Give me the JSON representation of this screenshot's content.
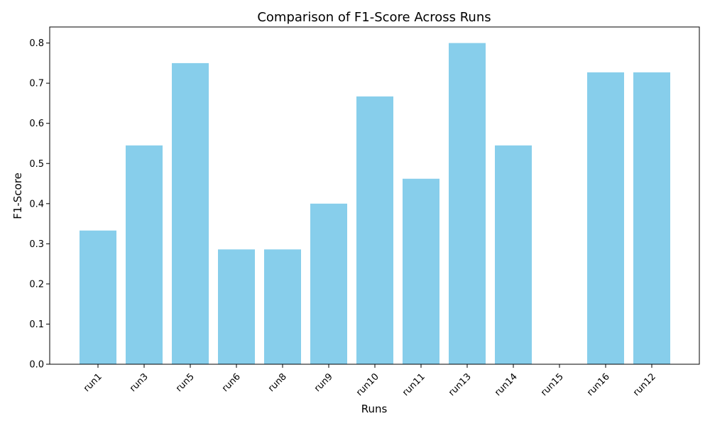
{
  "chart_data": {
    "type": "bar",
    "title": "Comparison of F1-Score Across Runs",
    "xlabel": "Runs",
    "ylabel": "F1-Score",
    "categories": [
      "run1",
      "run3",
      "run5",
      "run6",
      "run8",
      "run9",
      "run10",
      "run11",
      "run13",
      "run14",
      "run15",
      "run16",
      "run12"
    ],
    "values": [
      0.333,
      0.545,
      0.75,
      0.286,
      0.286,
      0.4,
      0.667,
      0.462,
      0.8,
      0.545,
      0.0,
      0.727,
      0.727
    ],
    "ylim": [
      0,
      0.84
    ],
    "yticks": [
      "0.0",
      "0.1",
      "0.2",
      "0.3",
      "0.4",
      "0.5",
      "0.6",
      "0.7",
      "0.8"
    ],
    "grid": false,
    "legend": "none",
    "bar_color": "#87CEEB"
  }
}
